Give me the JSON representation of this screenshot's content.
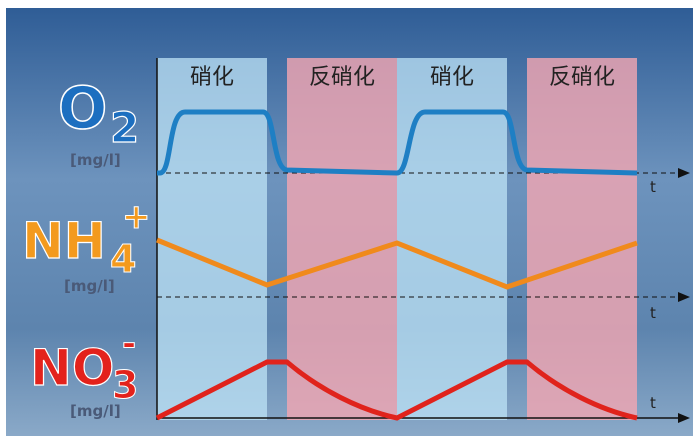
{
  "phases": [
    "硝化",
    "反硝化",
    "硝化",
    "反硝化"
  ],
  "panels": [
    {
      "formula": "O",
      "subscript": "2",
      "unit": "[mg/l]",
      "axis": "t"
    },
    {
      "formula": "NH",
      "subscript": "4",
      "superscript": "+",
      "unit": "[mg/l]",
      "axis": "t"
    },
    {
      "formula": "NO",
      "subscript": "3",
      "superscript": "-",
      "unit": "[mg/l]",
      "axis": "t"
    }
  ]
}
